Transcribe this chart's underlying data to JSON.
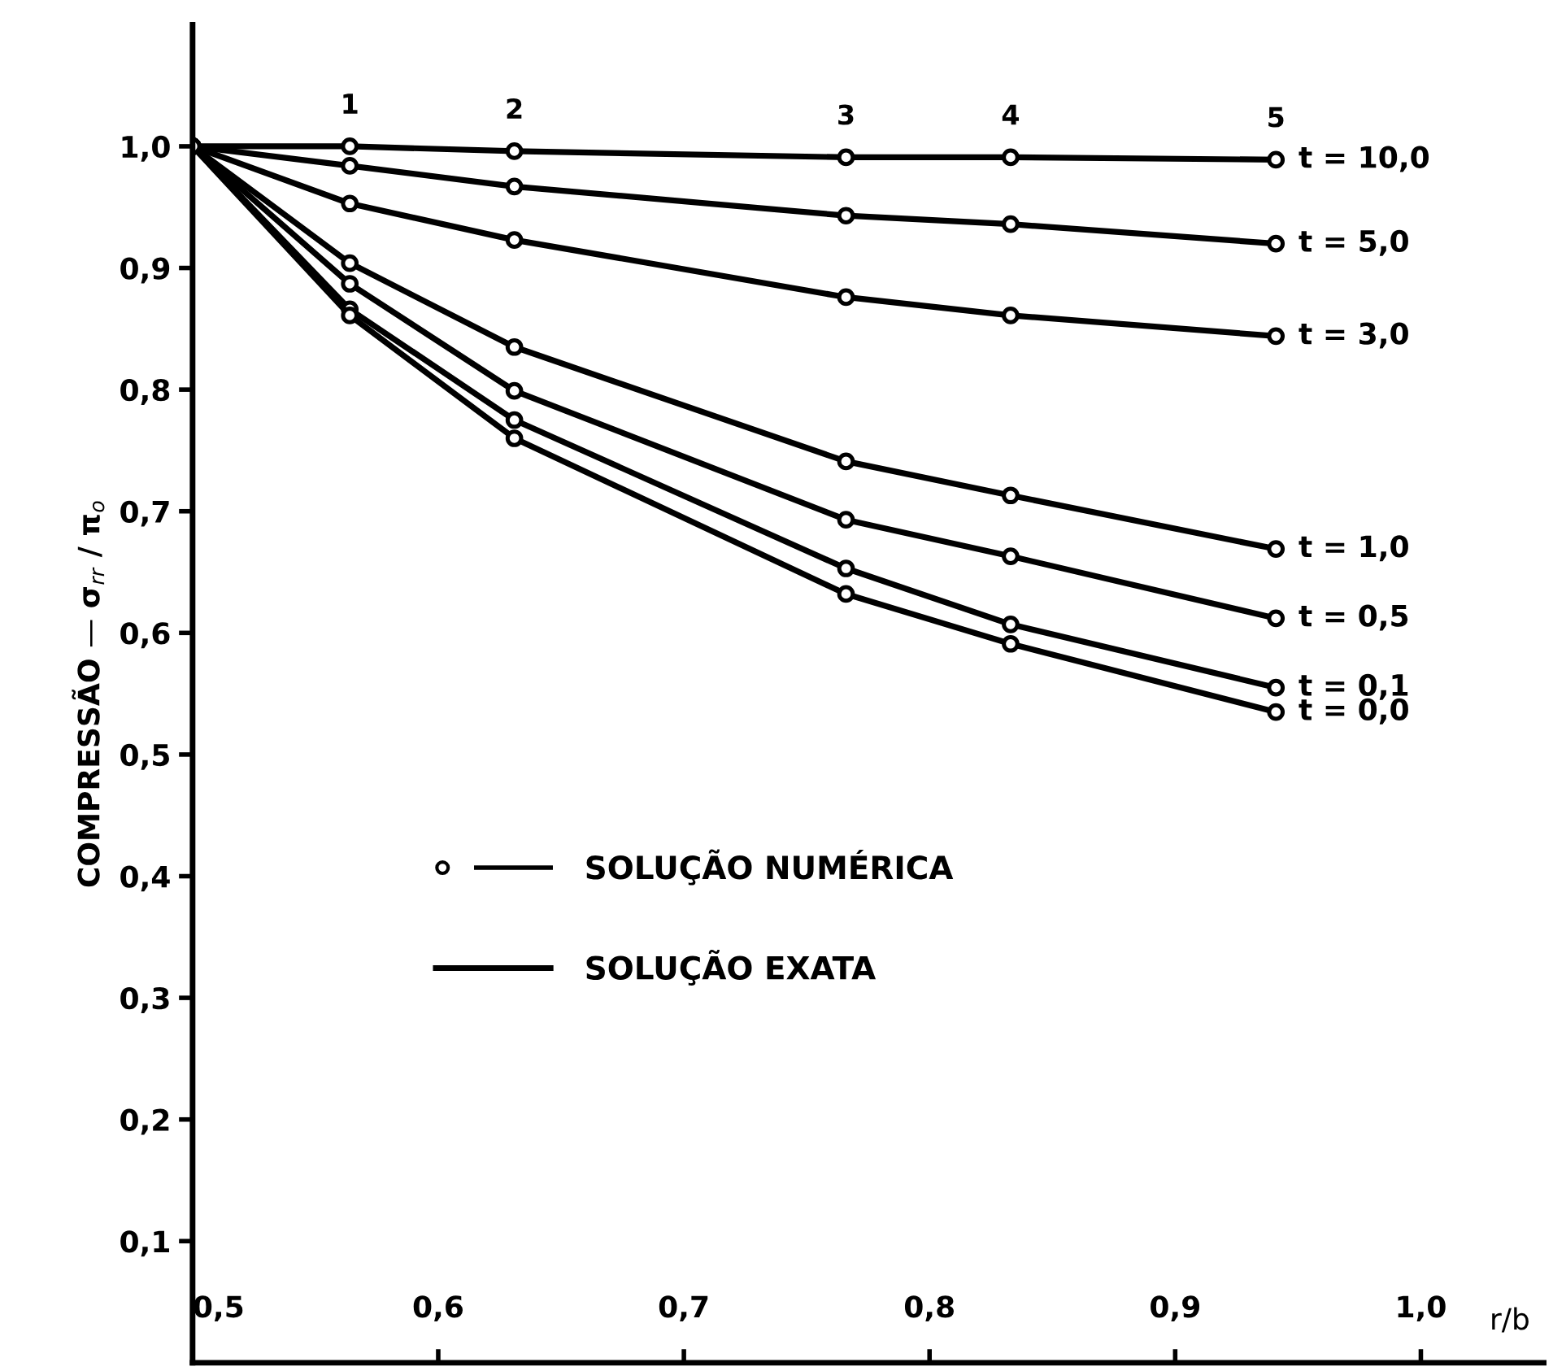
{
  "chart_data": {
    "type": "line",
    "xlabel": "r/b",
    "ylabel": "COMPRESSÃO — σ$_{rr}$ / π$_{o}$",
    "xlim": [
      0.5,
      1.05
    ],
    "ylim": [
      0,
      1.1
    ],
    "xticks": [
      {
        "value": 0.5,
        "label": "0,5"
      },
      {
        "value": 0.6,
        "label": "0,6"
      },
      {
        "value": 0.7,
        "label": "0,7"
      },
      {
        "value": 0.8,
        "label": "0,8"
      },
      {
        "value": 0.9,
        "label": "0,9"
      },
      {
        "value": 1.0,
        "label": "1,0"
      }
    ],
    "yticks": [
      {
        "value": 0.1,
        "label": "0,1"
      },
      {
        "value": 0.2,
        "label": "0,2"
      },
      {
        "value": 0.3,
        "label": "0,3"
      },
      {
        "value": 0.4,
        "label": "0,4"
      },
      {
        "value": 0.5,
        "label": "0,5"
      },
      {
        "value": 0.6,
        "label": "0,6"
      },
      {
        "value": 0.7,
        "label": "0,7"
      },
      {
        "value": 0.8,
        "label": "0,8"
      },
      {
        "value": 0.9,
        "label": "0,9"
      },
      {
        "value": 1.0,
        "label": "1,0"
      }
    ],
    "x": [
      0.5,
      0.564,
      0.631,
      0.766,
      0.833,
      0.941
    ],
    "marker": "circle",
    "line_style": "solid",
    "grid": false,
    "series": [
      {
        "name": "t = 10,0",
        "color": "#000000",
        "values": [
          1.0,
          1.0,
          0.996,
          0.991,
          0.991,
          0.989
        ]
      },
      {
        "name": "t = 5,0",
        "color": "#000000",
        "values": [
          1.0,
          0.984,
          0.967,
          0.943,
          0.936,
          0.92
        ]
      },
      {
        "name": "t = 3,0",
        "color": "#000000",
        "values": [
          1.0,
          0.953,
          0.923,
          0.876,
          0.861,
          0.844
        ]
      },
      {
        "name": "t = 1,0",
        "color": "#000000",
        "values": [
          1.0,
          0.904,
          0.835,
          0.741,
          0.713,
          0.669
        ]
      },
      {
        "name": "t = 0,5",
        "color": "#000000",
        "values": [
          1.0,
          0.887,
          0.799,
          0.693,
          0.663,
          0.612
        ]
      },
      {
        "name": "t = 0,1",
        "color": "#000000",
        "values": [
          1.0,
          0.866,
          0.775,
          0.653,
          0.607,
          0.555
        ]
      },
      {
        "name": "t = 0,0",
        "color": "#000000",
        "values": [
          1.0,
          0.861,
          0.76,
          0.632,
          0.591,
          0.535
        ]
      }
    ],
    "annotations": [
      {
        "text": "1",
        "x": 0.564,
        "y": 1.0
      },
      {
        "text": "2",
        "x": 0.631,
        "y": 0.996
      },
      {
        "text": "3",
        "x": 0.766,
        "y": 0.991
      },
      {
        "text": "4",
        "x": 0.833,
        "y": 0.991
      },
      {
        "text": "5",
        "x": 0.941,
        "y": 0.989
      },
      "SOLUÇÃO NUMÉRICA",
      "SOLUÇÃO EXATA"
    ]
  }
}
